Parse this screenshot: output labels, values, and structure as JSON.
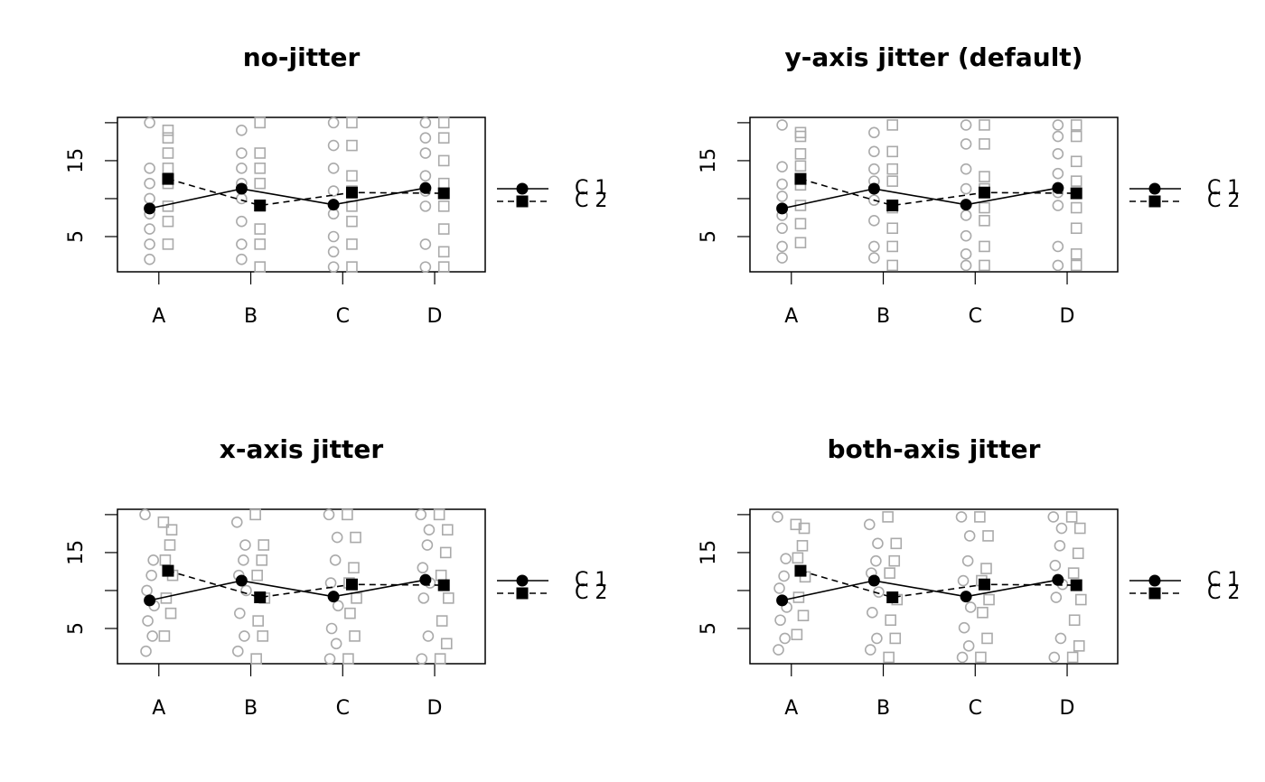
{
  "chart_data": [
    {
      "type": "line",
      "title": "no-jitter",
      "xlim": [
        0.55,
        4.55
      ],
      "xticks": [
        {
          "value": 1,
          "label": "A"
        },
        {
          "value": 2,
          "label": "B"
        },
        {
          "value": 3,
          "label": "C"
        },
        {
          "value": 4,
          "label": "D"
        }
      ],
      "ylim": [
        0.36,
        20.7
      ],
      "yticks": [
        5,
        15
      ],
      "yminor_ticks": [
        10,
        20
      ],
      "point_color": "#aaaaaa",
      "series": [
        {
          "name": "C 1",
          "color": "#000000",
          "linestyle": "solid",
          "marker": "circle",
          "x": [
            0.9,
            1.9,
            2.9,
            3.9
          ],
          "values": [
            8.7,
            11.3,
            9.2,
            11.4
          ],
          "points_x": [
            0.9,
            0.9,
            0.9,
            0.9,
            0.9,
            0.9,
            0.9,
            0.9,
            1.9,
            1.9,
            1.9,
            1.9,
            1.9,
            1.9,
            1.9,
            1.9,
            2.9,
            2.9,
            2.9,
            2.9,
            2.9,
            2.9,
            2.9,
            2.9,
            3.9,
            3.9,
            3.9,
            3.9,
            3.9,
            3.9,
            3.9,
            3.9
          ],
          "points_y": [
            2,
            4,
            6,
            8,
            10,
            12,
            14,
            20,
            2,
            4,
            7,
            10,
            12,
            14,
            16,
            19,
            1,
            3,
            5,
            8,
            11,
            14,
            17,
            20,
            1,
            4,
            9,
            11,
            13,
            16,
            18,
            20
          ]
        },
        {
          "name": "C 2",
          "color": "#000000",
          "linestyle": "dashed",
          "marker": "square",
          "x": [
            1.1,
            2.1,
            3.1,
            4.1
          ],
          "values": [
            12.6,
            9.1,
            10.8,
            10.7
          ],
          "points_x": [
            1.1,
            1.1,
            1.1,
            1.1,
            1.1,
            1.1,
            1.1,
            1.1,
            2.1,
            2.1,
            2.1,
            2.1,
            2.1,
            2.1,
            2.1,
            2.1,
            3.1,
            3.1,
            3.1,
            3.1,
            3.1,
            3.1,
            3.1,
            3.1,
            4.1,
            4.1,
            4.1,
            4.1,
            4.1,
            4.1,
            4.1,
            4.1
          ],
          "points_y": [
            4,
            7,
            9,
            12,
            14,
            16,
            18,
            19,
            1,
            4,
            6,
            9,
            12,
            14,
            16,
            20,
            1,
            4,
            7,
            9,
            11,
            13,
            17,
            20,
            1,
            3,
            6,
            9,
            12,
            15,
            18,
            20
          ]
        }
      ]
    },
    {
      "type": "line",
      "title": "y-axis jitter (default)",
      "xlim": [
        0.55,
        4.55
      ],
      "xticks": [
        {
          "value": 1,
          "label": "A"
        },
        {
          "value": 2,
          "label": "B"
        },
        {
          "value": 3,
          "label": "C"
        },
        {
          "value": 4,
          "label": "D"
        }
      ],
      "ylim": [
        0.36,
        20.7
      ],
      "yticks": [
        5,
        15
      ],
      "yminor_ticks": [
        10,
        20
      ],
      "point_color": "#aaaaaa",
      "series": [
        {
          "name": "C 1",
          "color": "#000000",
          "linestyle": "solid",
          "marker": "circle",
          "x": [
            0.9,
            1.9,
            2.9,
            3.9
          ],
          "values": [
            8.7,
            11.3,
            9.2,
            11.4
          ],
          "points_x": [
            0.9,
            0.9,
            0.9,
            0.9,
            0.9,
            0.9,
            0.9,
            0.9,
            1.9,
            1.9,
            1.9,
            1.9,
            1.9,
            1.9,
            1.9,
            1.9,
            2.9,
            2.9,
            2.9,
            2.9,
            2.9,
            2.9,
            2.9,
            2.9,
            3.9,
            3.9,
            3.9,
            3.9,
            3.9,
            3.9,
            3.9,
            3.9
          ],
          "points_y": [
            2.2,
            3.7,
            6.1,
            7.8,
            10.3,
            11.9,
            14.2,
            19.7,
            2.2,
            3.7,
            7.1,
            9.8,
            12.3,
            13.9,
            16.2,
            18.7,
            1.2,
            2.7,
            5.1,
            7.8,
            11.3,
            13.9,
            17.2,
            19.7,
            1.2,
            3.7,
            9.1,
            10.8,
            13.3,
            15.9,
            18.2,
            19.7
          ]
        },
        {
          "name": "C 2",
          "color": "#000000",
          "linestyle": "dashed",
          "marker": "square",
          "x": [
            1.1,
            2.1,
            3.1,
            4.1
          ],
          "values": [
            12.6,
            9.1,
            10.8,
            10.7
          ],
          "points_x": [
            1.1,
            1.1,
            1.1,
            1.1,
            1.1,
            1.1,
            1.1,
            1.1,
            2.1,
            2.1,
            2.1,
            2.1,
            2.1,
            2.1,
            2.1,
            2.1,
            3.1,
            3.1,
            3.1,
            3.1,
            3.1,
            3.1,
            3.1,
            3.1,
            4.1,
            4.1,
            4.1,
            4.1,
            4.1,
            4.1,
            4.1,
            4.1
          ],
          "points_y": [
            4.2,
            6.7,
            9.1,
            11.8,
            14.3,
            15.9,
            18.2,
            18.7,
            1.2,
            3.7,
            6.1,
            8.8,
            12.3,
            13.9,
            16.2,
            19.7,
            1.2,
            3.7,
            7.1,
            8.8,
            11.3,
            12.9,
            17.2,
            19.7,
            1.2,
            2.7,
            6.1,
            8.8,
            12.3,
            14.9,
            18.2,
            19.7
          ]
        }
      ]
    },
    {
      "type": "line",
      "title": "x-axis jitter",
      "xlim": [
        0.55,
        4.55
      ],
      "xticks": [
        {
          "value": 1,
          "label": "A"
        },
        {
          "value": 2,
          "label": "B"
        },
        {
          "value": 3,
          "label": "C"
        },
        {
          "value": 4,
          "label": "D"
        }
      ],
      "ylim": [
        0.36,
        20.7
      ],
      "yticks": [
        5,
        15
      ],
      "yminor_ticks": [
        10,
        20
      ],
      "point_color": "#aaaaaa",
      "series": [
        {
          "name": "C 1",
          "color": "#000000",
          "linestyle": "solid",
          "marker": "circle",
          "x": [
            0.9,
            1.9,
            2.9,
            3.9
          ],
          "values": [
            8.7,
            11.3,
            9.2,
            11.4
          ],
          "points_x": [
            0.86,
            0.93,
            0.88,
            0.95,
            0.87,
            0.92,
            0.94,
            0.85,
            1.86,
            1.93,
            1.88,
            1.95,
            1.87,
            1.92,
            1.94,
            1.85,
            2.86,
            2.93,
            2.88,
            2.95,
            2.87,
            2.92,
            2.94,
            2.85,
            3.86,
            3.93,
            3.88,
            3.95,
            3.87,
            3.92,
            3.94,
            3.85
          ],
          "points_y": [
            2,
            4,
            6,
            8,
            10,
            12,
            14,
            20,
            2,
            4,
            7,
            10,
            12,
            14,
            16,
            19,
            1,
            3,
            5,
            8,
            11,
            14,
            17,
            20,
            1,
            4,
            9,
            11,
            13,
            16,
            18,
            20
          ]
        },
        {
          "name": "C 2",
          "color": "#000000",
          "linestyle": "dashed",
          "marker": "square",
          "x": [
            1.1,
            2.1,
            3.1,
            4.1
          ],
          "values": [
            12.6,
            9.1,
            10.8,
            10.7
          ],
          "points_x": [
            1.06,
            1.13,
            1.08,
            1.15,
            1.07,
            1.12,
            1.14,
            1.05,
            2.06,
            2.13,
            2.08,
            2.15,
            2.07,
            2.12,
            2.14,
            2.05,
            3.06,
            3.13,
            3.08,
            3.15,
            3.07,
            3.12,
            3.14,
            3.05,
            4.06,
            4.13,
            4.08,
            4.15,
            4.07,
            4.12,
            4.14,
            4.05
          ],
          "points_y": [
            4,
            7,
            9,
            12,
            14,
            16,
            18,
            19,
            1,
            4,
            6,
            9,
            12,
            14,
            16,
            20,
            1,
            4,
            7,
            9,
            11,
            13,
            17,
            20,
            1,
            3,
            6,
            9,
            12,
            15,
            18,
            20
          ]
        }
      ]
    },
    {
      "type": "line",
      "title": "both-axis jitter",
      "xlim": [
        0.55,
        4.55
      ],
      "xticks": [
        {
          "value": 1,
          "label": "A"
        },
        {
          "value": 2,
          "label": "B"
        },
        {
          "value": 3,
          "label": "C"
        },
        {
          "value": 4,
          "label": "D"
        }
      ],
      "ylim": [
        0.36,
        20.7
      ],
      "yticks": [
        5,
        15
      ],
      "yminor_ticks": [
        10,
        20
      ],
      "point_color": "#aaaaaa",
      "series": [
        {
          "name": "C 1",
          "color": "#000000",
          "linestyle": "solid",
          "marker": "circle",
          "x": [
            0.9,
            1.9,
            2.9,
            3.9
          ],
          "values": [
            8.7,
            11.3,
            9.2,
            11.4
          ],
          "points_x": [
            0.86,
            0.93,
            0.88,
            0.95,
            0.87,
            0.92,
            0.94,
            0.85,
            1.86,
            1.93,
            1.88,
            1.95,
            1.87,
            1.92,
            1.94,
            1.85,
            2.86,
            2.93,
            2.88,
            2.95,
            2.87,
            2.92,
            2.94,
            2.85,
            3.86,
            3.93,
            3.88,
            3.95,
            3.87,
            3.92,
            3.94,
            3.85
          ],
          "points_y": [
            2.2,
            3.7,
            6.1,
            7.8,
            10.3,
            11.9,
            14.2,
            19.7,
            2.2,
            3.7,
            7.1,
            9.8,
            12.3,
            13.9,
            16.2,
            18.7,
            1.2,
            2.7,
            5.1,
            7.8,
            11.3,
            13.9,
            17.2,
            19.7,
            1.2,
            3.7,
            9.1,
            10.8,
            13.3,
            15.9,
            18.2,
            19.7
          ]
        },
        {
          "name": "C 2",
          "color": "#000000",
          "linestyle": "dashed",
          "marker": "square",
          "x": [
            1.1,
            2.1,
            3.1,
            4.1
          ],
          "values": [
            12.6,
            9.1,
            10.8,
            10.7
          ],
          "points_x": [
            1.06,
            1.13,
            1.08,
            1.15,
            1.07,
            1.12,
            1.14,
            1.05,
            2.06,
            2.13,
            2.08,
            2.15,
            2.07,
            2.12,
            2.14,
            2.05,
            3.06,
            3.13,
            3.08,
            3.15,
            3.07,
            3.12,
            3.14,
            3.05,
            4.06,
            4.13,
            4.08,
            4.15,
            4.07,
            4.12,
            4.14,
            4.05
          ],
          "points_y": [
            4.2,
            6.7,
            9.1,
            11.8,
            14.3,
            15.9,
            18.2,
            18.7,
            1.2,
            3.7,
            6.1,
            8.8,
            12.3,
            13.9,
            16.2,
            19.7,
            1.2,
            3.7,
            7.1,
            8.8,
            11.3,
            12.9,
            17.2,
            19.7,
            1.2,
            2.7,
            6.1,
            8.8,
            12.3,
            14.9,
            18.2,
            19.7
          ]
        }
      ]
    }
  ]
}
